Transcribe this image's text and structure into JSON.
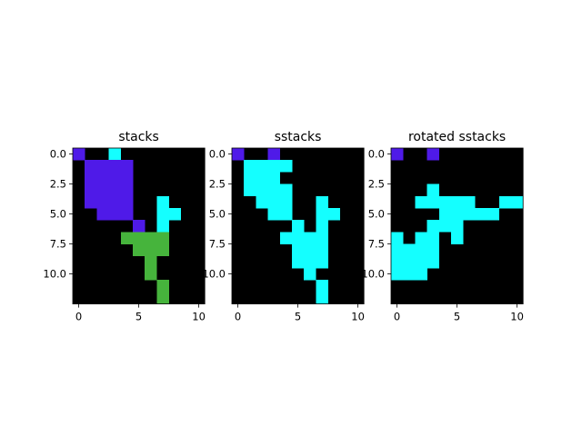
{
  "colors": {
    "background": "#000000",
    "purple": "#4f1ae8",
    "cyan": "#14ffff",
    "green": "#46b43c"
  },
  "chart_data": [
    {
      "type": "heatmap",
      "title": "stacks",
      "xticks": [
        "0",
        "5",
        "10"
      ],
      "yticks": [
        "0.0",
        "2.5",
        "5.0",
        "7.5",
        "10.0"
      ],
      "legend": {
        "0": "background",
        "1": "purple",
        "2": "cyan",
        "3": "green"
      },
      "grid": [
        [
          1,
          0,
          0,
          2,
          0,
          0,
          0,
          0,
          0,
          0,
          0
        ],
        [
          0,
          1,
          1,
          1,
          1,
          0,
          0,
          0,
          0,
          0,
          0
        ],
        [
          0,
          1,
          1,
          1,
          1,
          0,
          0,
          0,
          0,
          0,
          0
        ],
        [
          0,
          1,
          1,
          1,
          1,
          0,
          0,
          0,
          0,
          0,
          0
        ],
        [
          0,
          1,
          1,
          1,
          1,
          0,
          0,
          2,
          0,
          0,
          0
        ],
        [
          0,
          0,
          1,
          1,
          1,
          0,
          0,
          2,
          2,
          0,
          0
        ],
        [
          0,
          0,
          0,
          0,
          0,
          1,
          0,
          2,
          0,
          0,
          0
        ],
        [
          0,
          0,
          0,
          0,
          3,
          3,
          3,
          3,
          0,
          0,
          0
        ],
        [
          0,
          0,
          0,
          0,
          0,
          3,
          3,
          3,
          0,
          0,
          0
        ],
        [
          0,
          0,
          0,
          0,
          0,
          0,
          3,
          0,
          0,
          0,
          0
        ],
        [
          0,
          0,
          0,
          0,
          0,
          0,
          3,
          0,
          0,
          0,
          0
        ],
        [
          0,
          0,
          0,
          0,
          0,
          0,
          0,
          3,
          0,
          0,
          0
        ],
        [
          0,
          0,
          0,
          0,
          0,
          0,
          0,
          3,
          0,
          0,
          0
        ]
      ]
    },
    {
      "type": "heatmap",
      "title": "sstacks",
      "xticks": [
        "0",
        "5",
        "10"
      ],
      "yticks": [
        "0.0",
        "2.5",
        "5.0",
        "7.5",
        "10.0"
      ],
      "legend": {
        "0": "background",
        "1": "purple",
        "2": "cyan",
        "3": "green"
      },
      "grid": [
        [
          1,
          0,
          0,
          1,
          0,
          0,
          0,
          0,
          0,
          0,
          0
        ],
        [
          0,
          2,
          2,
          2,
          2,
          0,
          0,
          0,
          0,
          0,
          0
        ],
        [
          0,
          2,
          2,
          2,
          0,
          0,
          0,
          0,
          0,
          0,
          0
        ],
        [
          0,
          2,
          2,
          2,
          2,
          0,
          0,
          0,
          0,
          0,
          0
        ],
        [
          0,
          0,
          2,
          2,
          2,
          0,
          0,
          2,
          0,
          0,
          0
        ],
        [
          0,
          0,
          0,
          2,
          2,
          0,
          0,
          2,
          2,
          0,
          0
        ],
        [
          0,
          0,
          0,
          0,
          0,
          2,
          0,
          2,
          0,
          0,
          0
        ],
        [
          0,
          0,
          0,
          0,
          2,
          2,
          2,
          2,
          0,
          0,
          0
        ],
        [
          0,
          0,
          0,
          0,
          0,
          2,
          2,
          2,
          0,
          0,
          0
        ],
        [
          0,
          0,
          0,
          0,
          0,
          2,
          2,
          2,
          0,
          0,
          0
        ],
        [
          0,
          0,
          0,
          0,
          0,
          0,
          2,
          0,
          0,
          0,
          0
        ],
        [
          0,
          0,
          0,
          0,
          0,
          0,
          0,
          2,
          0,
          0,
          0
        ],
        [
          0,
          0,
          0,
          0,
          0,
          0,
          0,
          2,
          0,
          0,
          0
        ]
      ]
    },
    {
      "type": "heatmap",
      "title": "rotated sstacks",
      "xticks": [
        "0",
        "5",
        "10"
      ],
      "yticks": [
        "0.0",
        "2.5",
        "5.0",
        "7.5",
        "10.0"
      ],
      "legend": {
        "0": "background",
        "1": "purple",
        "2": "cyan",
        "3": "green"
      },
      "grid": [
        [
          1,
          0,
          0,
          1,
          0,
          0,
          0,
          0,
          0,
          0,
          0
        ],
        [
          0,
          0,
          0,
          0,
          0,
          0,
          0,
          0,
          0,
          0,
          0
        ],
        [
          0,
          0,
          0,
          0,
          0,
          0,
          0,
          0,
          0,
          0,
          0
        ],
        [
          0,
          0,
          0,
          2,
          0,
          0,
          0,
          0,
          0,
          0,
          0
        ],
        [
          0,
          0,
          2,
          2,
          2,
          2,
          2,
          0,
          0,
          2,
          2
        ],
        [
          0,
          0,
          0,
          0,
          2,
          2,
          2,
          2,
          2,
          0,
          0
        ],
        [
          0,
          0,
          0,
          2,
          2,
          2,
          0,
          0,
          0,
          0,
          0
        ],
        [
          2,
          0,
          2,
          2,
          0,
          2,
          0,
          0,
          0,
          0,
          0
        ],
        [
          2,
          2,
          2,
          2,
          0,
          0,
          0,
          0,
          0,
          0,
          0
        ],
        [
          2,
          2,
          2,
          2,
          0,
          0,
          0,
          0,
          0,
          0,
          0
        ],
        [
          2,
          2,
          2,
          0,
          0,
          0,
          0,
          0,
          0,
          0,
          0
        ],
        [
          0,
          0,
          0,
          0,
          0,
          0,
          0,
          0,
          0,
          0,
          0
        ],
        [
          0,
          0,
          0,
          0,
          0,
          0,
          0,
          0,
          0,
          0,
          0
        ]
      ]
    }
  ]
}
